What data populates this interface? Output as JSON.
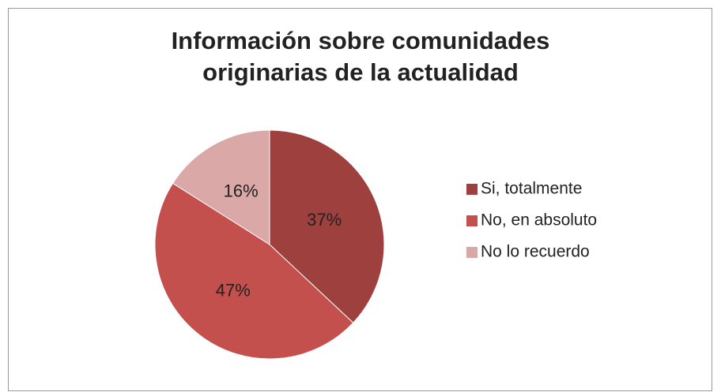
{
  "chart_data": {
    "type": "pie",
    "title": "Información sobre comunidades originarias de la actualidad",
    "categories": [
      "Si, totalmente",
      "No, en absoluto",
      "No lo recuerdo"
    ],
    "values": [
      37,
      47,
      16
    ],
    "value_labels": [
      "37%",
      "47%",
      "16%"
    ],
    "colors": [
      "#9e403e",
      "#c4504e",
      "#d9a8a7"
    ],
    "legend": "right"
  }
}
